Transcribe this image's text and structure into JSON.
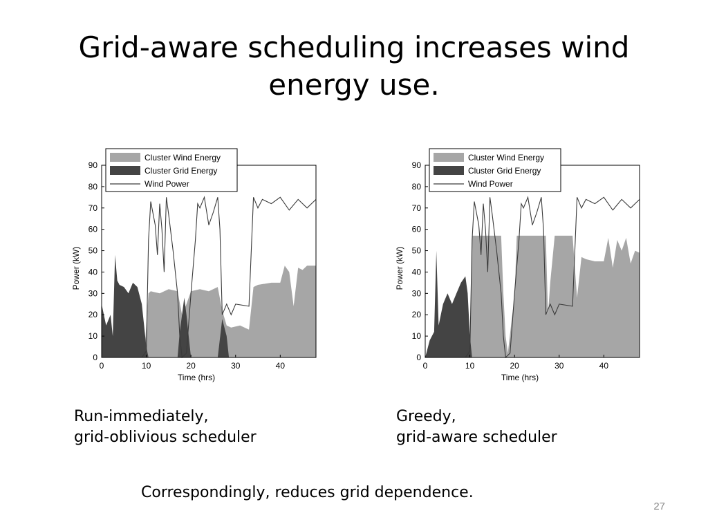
{
  "slide": {
    "title": "Grid-aware scheduling increases wind energy use.",
    "captions": [
      {
        "line1": "Run-immediately,",
        "line2": "grid-oblivious scheduler"
      },
      {
        "line1": "Greedy,",
        "line2": "grid-aware scheduler"
      }
    ],
    "footer_note": "Correspondingly, reduces grid dependence.",
    "page_number": "27"
  },
  "colors": {
    "wind_fill": "#a6a6a6",
    "grid_fill": "#444444",
    "wind_line": "#3a3a3a"
  },
  "chart_data": [
    {
      "type": "area",
      "title": "",
      "xlabel": "Time (hrs)",
      "ylabel": "Power (kW)",
      "xlim": [
        0,
        48
      ],
      "ylim": [
        0,
        90
      ],
      "xticks": [
        0,
        10,
        20,
        30,
        40
      ],
      "yticks": [
        0,
        10,
        20,
        30,
        40,
        50,
        60,
        70,
        80,
        90
      ],
      "legend_position": "top-left",
      "series": [
        {
          "name": "Cluster Wind Energy",
          "style": "area",
          "x": [
            0,
            8.5,
            9.5,
            10.5,
            11,
            13,
            15,
            17,
            18,
            19,
            20,
            22,
            24,
            26,
            27,
            28,
            29,
            31,
            33,
            34,
            35,
            38,
            40,
            41,
            42,
            43,
            44,
            45,
            46,
            48
          ],
          "y": [
            0,
            0,
            0,
            30,
            31,
            30,
            32,
            31,
            20,
            25,
            31,
            32,
            31,
            33,
            22,
            15,
            14,
            15,
            13,
            33,
            34,
            35,
            35,
            43,
            40,
            24,
            42,
            41,
            43,
            43
          ]
        },
        {
          "name": "Cluster Grid Energy",
          "style": "area",
          "x": [
            0,
            0.5,
            1,
            2,
            2.5,
            3,
            3.5,
            4,
            5,
            6,
            7,
            8,
            9,
            9.5,
            10,
            10.5,
            17,
            17.5,
            18,
            18.5,
            19,
            19.5,
            20,
            26,
            27,
            28,
            28.5,
            48
          ],
          "y": [
            25,
            20,
            15,
            20,
            10,
            48,
            36,
            34,
            33,
            30,
            35,
            33,
            25,
            15,
            5,
            0,
            0,
            12,
            20,
            28,
            20,
            10,
            0,
            0,
            18,
            10,
            0,
            0
          ]
        },
        {
          "name": "Wind Power",
          "style": "line",
          "x": [
            0,
            9,
            10,
            10.5,
            11,
            12,
            12.5,
            13,
            13.5,
            14,
            14.5,
            15,
            16,
            17,
            17.5,
            18,
            19,
            20,
            21,
            21.5,
            22,
            23,
            24,
            25,
            26,
            26.5,
            27,
            28,
            29,
            30,
            33,
            34,
            35,
            36,
            38,
            40,
            42,
            44,
            46,
            48
          ],
          "y": [
            0,
            0,
            3,
            55,
            73,
            62,
            48,
            72,
            60,
            40,
            75,
            67,
            50,
            30,
            10,
            0,
            2,
            30,
            55,
            72,
            70,
            75,
            62,
            68,
            75,
            60,
            20,
            25,
            20,
            25,
            24,
            75,
            70,
            74,
            72,
            75,
            69,
            74,
            70,
            74
          ]
        }
      ]
    },
    {
      "type": "area",
      "title": "",
      "xlabel": "Time (hrs)",
      "ylabel": "Power (kW)",
      "xlim": [
        0,
        48
      ],
      "ylim": [
        0,
        90
      ],
      "xticks": [
        0,
        10,
        20,
        30,
        40
      ],
      "yticks": [
        0,
        10,
        20,
        30,
        40,
        50,
        60,
        70,
        80,
        90
      ],
      "legend_position": "top-left",
      "series": [
        {
          "name": "Cluster Wind Energy",
          "style": "area",
          "x": [
            0,
            9.5,
            10,
            10.5,
            17,
            17.5,
            18,
            18.5,
            19.5,
            20,
            20.5,
            22,
            27,
            27.5,
            28,
            29,
            33,
            34,
            35,
            36,
            38,
            40,
            41,
            42,
            43,
            44,
            45,
            46,
            47,
            48
          ],
          "y": [
            0,
            0,
            5,
            57,
            57,
            30,
            10,
            2,
            20,
            28,
            57,
            57,
            57,
            20,
            35,
            57,
            57,
            28,
            47,
            46,
            45,
            45,
            56,
            42,
            55,
            50,
            56,
            44,
            50,
            49
          ]
        },
        {
          "name": "Cluster Grid Energy",
          "style": "area",
          "x": [
            0,
            1,
            2,
            2.5,
            3,
            3.5,
            4,
            5,
            6,
            7,
            8,
            9,
            9.5,
            10,
            10.5,
            48
          ],
          "y": [
            0,
            8,
            12,
            50,
            15,
            20,
            25,
            30,
            25,
            30,
            35,
            38,
            30,
            10,
            0,
            0
          ]
        },
        {
          "name": "Wind Power",
          "style": "line",
          "x": [
            0,
            9,
            10,
            10.5,
            11,
            12,
            12.5,
            13,
            13.5,
            14,
            14.5,
            15,
            16,
            17,
            17.5,
            18,
            19,
            20,
            21,
            21.5,
            22,
            23,
            24,
            25,
            26,
            26.5,
            27,
            28,
            29,
            30,
            33,
            34,
            35,
            36,
            38,
            40,
            42,
            44,
            46,
            48
          ],
          "y": [
            0,
            0,
            3,
            55,
            73,
            62,
            48,
            72,
            60,
            40,
            75,
            67,
            50,
            30,
            10,
            0,
            2,
            30,
            55,
            72,
            70,
            75,
            62,
            68,
            75,
            60,
            20,
            25,
            20,
            25,
            24,
            75,
            70,
            74,
            72,
            75,
            69,
            74,
            70,
            74
          ]
        }
      ]
    }
  ]
}
